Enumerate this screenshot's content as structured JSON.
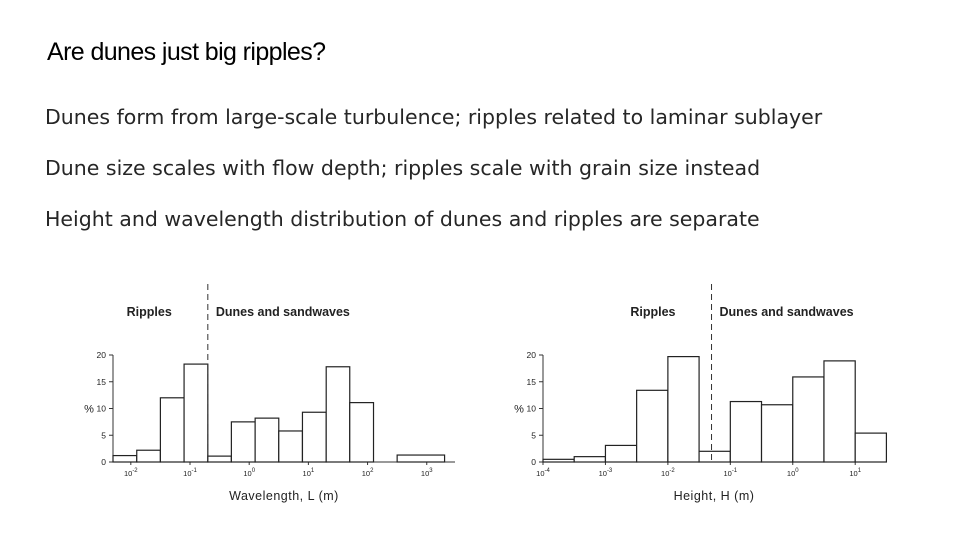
{
  "slide": {
    "title": "Are dunes just big ripples?",
    "bullets": [
      "Dunes form from large-scale turbulence; ripples related to laminar sublayer",
      "Dune size scales with flow depth; ripples scale with grain size instead",
      "Height and wavelength distribution of dunes and ripples are separate"
    ]
  },
  "chart_data": [
    {
      "type": "bar",
      "histogram": true,
      "xlabel": "Wavelength, L (m)",
      "ylabel": "%",
      "x_scale": "log",
      "xlim": [
        0.005,
        3000
      ],
      "ylim": [
        0,
        20
      ],
      "yticks": [
        0,
        5,
        10,
        15,
        20
      ],
      "xticks": [
        {
          "value": 0.01,
          "base": "10",
          "exp": "-2"
        },
        {
          "value": 0.1,
          "base": "10",
          "exp": "-1"
        },
        {
          "value": 1,
          "base": "10",
          "exp": "0"
        },
        {
          "value": 10,
          "base": "10",
          "exp": "1"
        },
        {
          "value": 100,
          "base": "10",
          "exp": "2"
        },
        {
          "value": 1000,
          "base": "10",
          "exp": "3"
        }
      ],
      "bins": [
        {
          "from": 0.005,
          "to": 0.0126,
          "value": 1.2
        },
        {
          "from": 0.0126,
          "to": 0.0316,
          "value": 2.2
        },
        {
          "from": 0.0316,
          "to": 0.0794,
          "value": 12
        },
        {
          "from": 0.0794,
          "to": 0.2,
          "value": 18.3
        },
        {
          "from": 0.2,
          "to": 0.5,
          "value": 1.1
        },
        {
          "from": 0.5,
          "to": 1.26,
          "value": 7.5
        },
        {
          "from": 1.26,
          "to": 3.16,
          "value": 8.2
        },
        {
          "from": 3.16,
          "to": 7.94,
          "value": 5.8
        },
        {
          "from": 7.94,
          "to": 20,
          "value": 9.3
        },
        {
          "from": 20,
          "to": 50,
          "value": 17.8
        },
        {
          "from": 50,
          "to": 126,
          "value": 11.1
        },
        {
          "from": 126,
          "to": 316,
          "value": 0
        },
        {
          "from": 316,
          "to": 2000,
          "value": 1.3
        }
      ],
      "divider_x": 0.2,
      "regions": {
        "left": "Ripples",
        "right": "Dunes and sandwaves"
      }
    },
    {
      "type": "bar",
      "histogram": true,
      "xlabel": "Height, H (m)",
      "ylabel": "%",
      "x_scale": "log",
      "xlim": [
        0.0001,
        30
      ],
      "ylim": [
        0,
        20
      ],
      "yticks": [
        0,
        5,
        10,
        15,
        20
      ],
      "xticks": [
        {
          "value": 0.0001,
          "base": "10",
          "exp": "-4"
        },
        {
          "value": 0.001,
          "base": "10",
          "exp": "-3"
        },
        {
          "value": 0.01,
          "base": "10",
          "exp": "-2"
        },
        {
          "value": 0.1,
          "base": "10",
          "exp": "-1"
        },
        {
          "value": 1,
          "base": "10",
          "exp": "0"
        },
        {
          "value": 10,
          "base": "10",
          "exp": "1"
        }
      ],
      "bins": [
        {
          "from": 0.0001,
          "to": 0.000316,
          "value": 0.5
        },
        {
          "from": 0.000316,
          "to": 0.001,
          "value": 1
        },
        {
          "from": 0.001,
          "to": 0.00316,
          "value": 3.1
        },
        {
          "from": 0.00316,
          "to": 0.01,
          "value": 13.4
        },
        {
          "from": 0.01,
          "to": 0.0316,
          "value": 19.7
        },
        {
          "from": 0.0316,
          "to": 0.1,
          "value": 2
        },
        {
          "from": 0.1,
          "to": 0.316,
          "value": 11.3
        },
        {
          "from": 0.316,
          "to": 1,
          "value": 10.7
        },
        {
          "from": 1,
          "to": 3.16,
          "value": 15.9
        },
        {
          "from": 3.16,
          "to": 10,
          "value": 18.9
        },
        {
          "from": 10,
          "to": 31.6,
          "value": 5.4
        }
      ],
      "divider_x": 0.05,
      "regions": {
        "left": "Ripples",
        "right": "Dunes and sandwaves"
      }
    }
  ]
}
